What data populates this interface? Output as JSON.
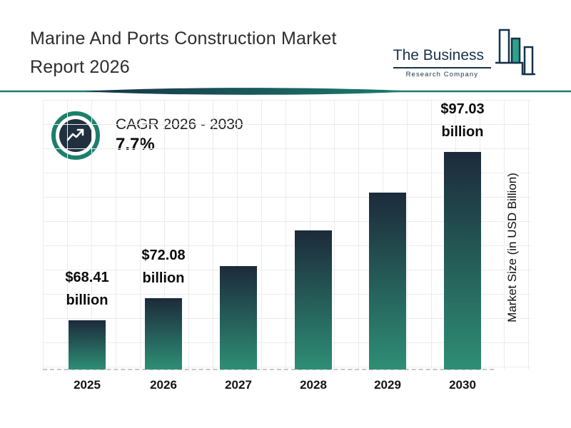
{
  "header": {
    "title_line1": "Marine And Ports Construction Market",
    "title_line2": "Report 2026"
  },
  "logo": {
    "name": "The Business",
    "subtitle": "Research Company"
  },
  "cagr": {
    "label": "CAGR 2026 - 2030",
    "value": "7.7%"
  },
  "chart_data": {
    "type": "bar",
    "title": "Marine And Ports Construction Market Report 2026",
    "categories": [
      "2025",
      "2026",
      "2027",
      "2028",
      "2029",
      "2030"
    ],
    "values": [
      68.41,
      72.08,
      77.6,
      83.6,
      90.0,
      97.03
    ],
    "value_labels": [
      {
        "amount": "$68.41",
        "unit": "billion"
      },
      {
        "amount": "$72.08",
        "unit": "billion"
      },
      null,
      null,
      null,
      {
        "amount": "$97.03",
        "unit": "billion"
      }
    ],
    "xlabel": "",
    "ylabel": "Market Size (in USD Billion)",
    "ylim": [
      60,
      100
    ],
    "grid": true,
    "legend": false,
    "bar_gradient_top": "#1c2a3a",
    "bar_gradient_bottom": "#2e8e75"
  },
  "colors": {
    "accent_teal": "#1c7f6c",
    "dark_navy": "#16324a",
    "logo_teal": "#2aa38a"
  }
}
